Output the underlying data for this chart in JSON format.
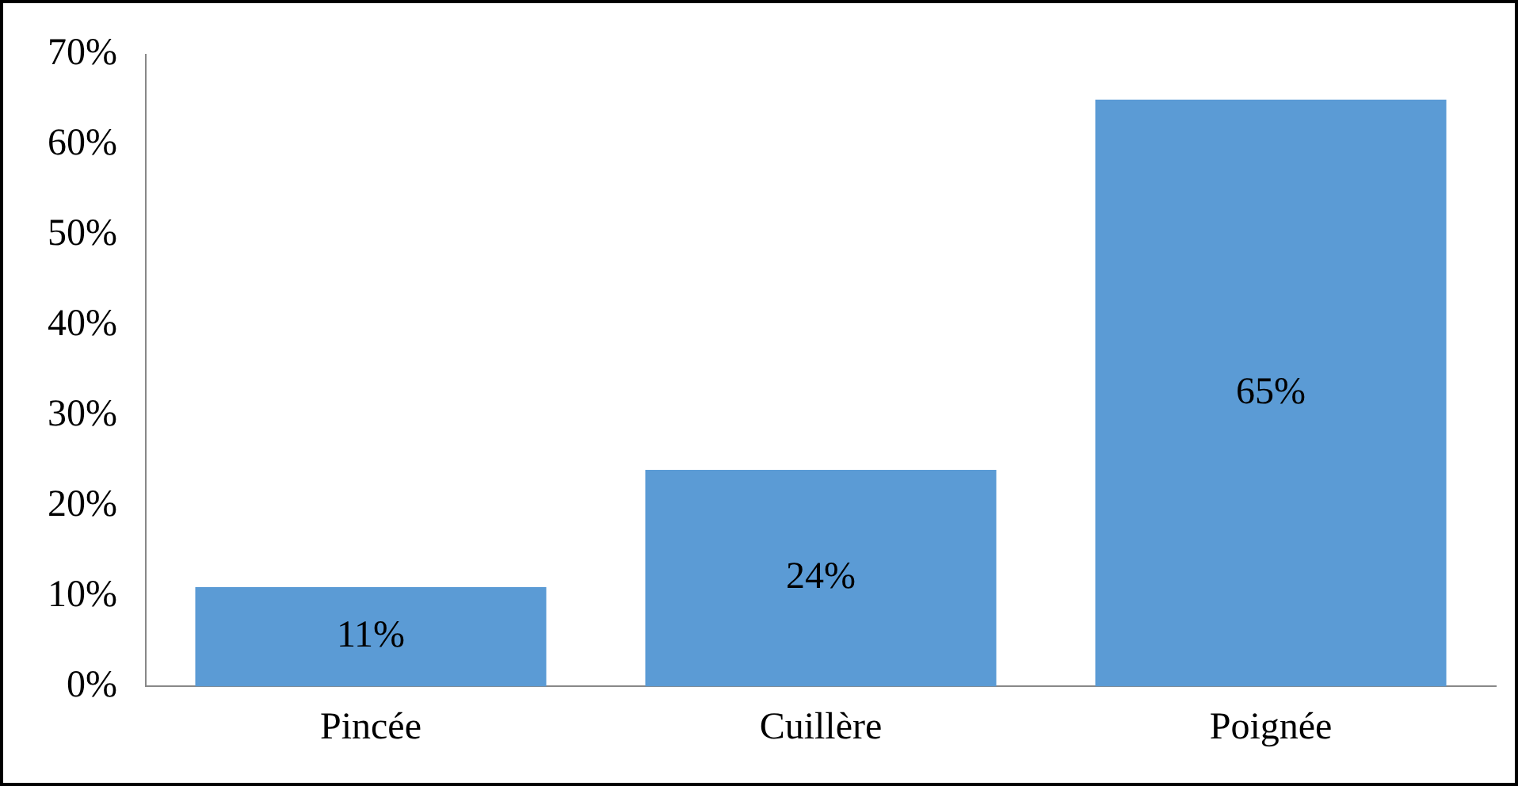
{
  "chart_data": {
    "type": "bar",
    "categories": [
      "Pincée",
      "Cuillère",
      "Poignée"
    ],
    "values": [
      11,
      24,
      65
    ],
    "color": "#5b9bd5",
    "value_labels": [
      "11%",
      "24%",
      "65%"
    ],
    "ylim": [
      0,
      70
    ],
    "yticks": [
      {
        "value": 0,
        "label": "0%"
      },
      {
        "value": 10,
        "label": "10%"
      },
      {
        "value": 20,
        "label": "20%"
      },
      {
        "value": 30,
        "label": "30%"
      },
      {
        "value": 40,
        "label": "40%"
      },
      {
        "value": 50,
        "label": "50%"
      },
      {
        "value": 60,
        "label": "60%"
      },
      {
        "value": 70,
        "label": "70%"
      }
    ],
    "grid": false,
    "legend": false
  }
}
